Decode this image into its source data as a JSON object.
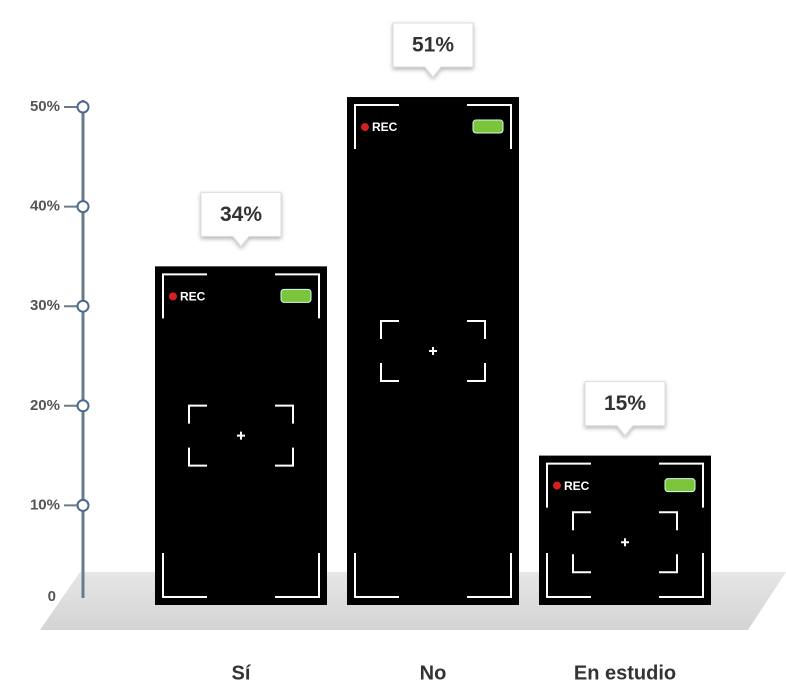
{
  "chart_data": {
    "type": "bar",
    "categories": [
      "Sí",
      "No",
      "En estudio"
    ],
    "values": [
      34,
      51,
      15
    ],
    "value_labels": [
      "34%",
      "51%",
      "15%"
    ],
    "bar_badge": "REC",
    "color": "#000000",
    "ylim": [
      0,
      50
    ],
    "yticks": [
      0,
      {
        "value": 10,
        "label": "10%"
      },
      {
        "value": 20,
        "label": "20%"
      },
      {
        "value": 30,
        "label": "30%"
      },
      {
        "value": 40,
        "label": "40%"
      },
      {
        "value": 50,
        "label": "50%"
      }
    ],
    "grid": false
  }
}
